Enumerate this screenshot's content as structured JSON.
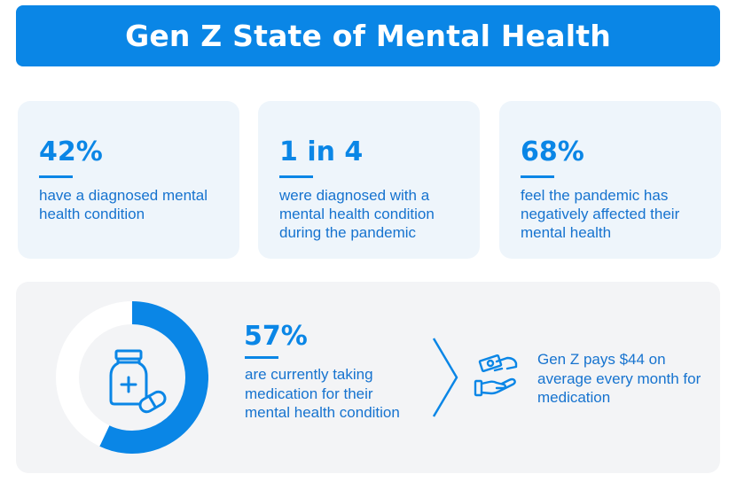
{
  "title": "Gen Z State of Mental Health",
  "stats": [
    {
      "value": "42%",
      "description": "have a diagnosed mental health condition"
    },
    {
      "value": "1 in 4",
      "description": "were diagnosed with a mental health condition during the pandemic"
    },
    {
      "value": "68%",
      "description": "feel the pandemic has negatively affected their mental health"
    }
  ],
  "medication": {
    "value": "57%",
    "fraction": 0.57,
    "description": "are currently taking medication for their mental health condition",
    "icon": "medicine-bottle-icon"
  },
  "cost": {
    "description": "Gen Z pays $44 on average every month for medication",
    "icon": "money-hand-icon"
  },
  "colors": {
    "accent": "#0a86e6",
    "text": "#1673cf",
    "card_bg": "#eef5fb",
    "panel_bg": "#f3f4f6"
  }
}
